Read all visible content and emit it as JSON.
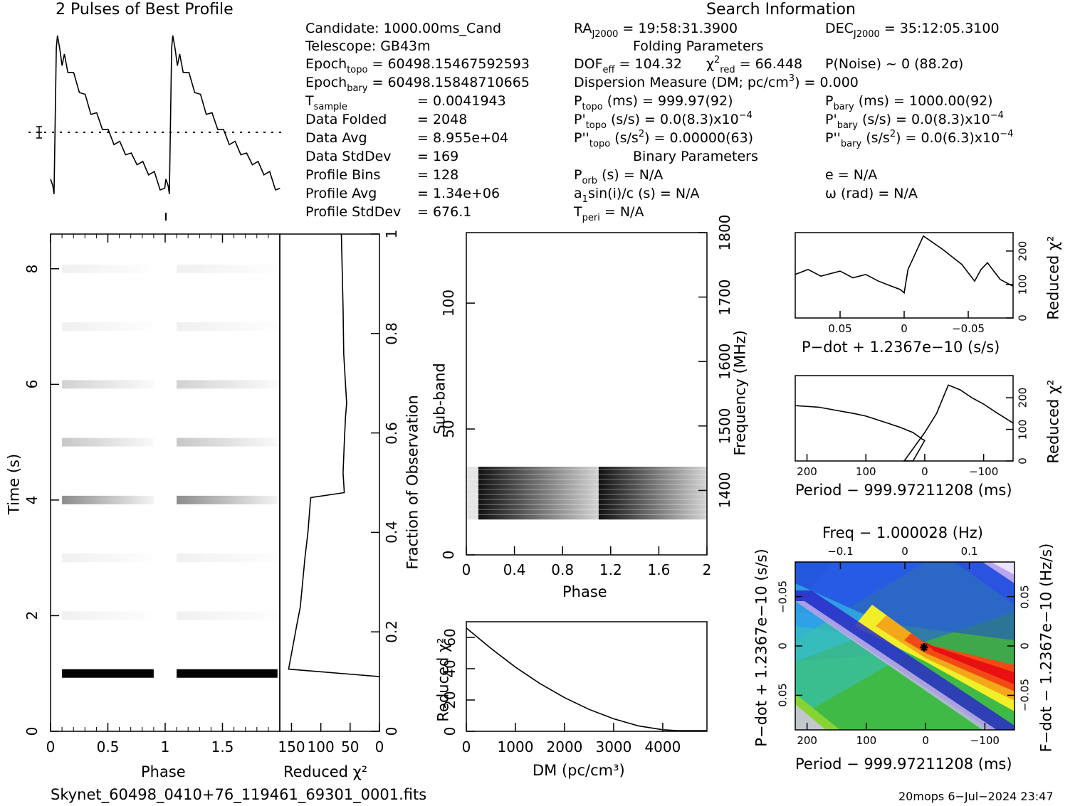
{
  "profile_title": "2 Pulses of Best Profile",
  "search_title": "Search Information",
  "folding_title": "Folding Parameters",
  "binary_title": "Binary Parameters",
  "candidate": {
    "candidate": "Candidate:  1000.00ms_Cand",
    "telescope": "Telescope:  GB43m",
    "epoch_topo_label": "Epoch",
    "epoch_topo_sub": "topo",
    "epoch_topo_value": " = 60498.15467592593",
    "epoch_bary_label": "Epoch",
    "epoch_bary_sub": "bary",
    "epoch_bary_value": " = 60498.15848710665",
    "tsample_label": "T",
    "tsample_sub": "sample",
    "tsample_value": "=   0.0041943",
    "data_folded_label": "Data Folded",
    "data_folded_value": "=   2048",
    "data_avg_label": "Data Avg",
    "data_avg_value": "=   8.955e+04",
    "data_stddev_label": "Data StdDev",
    "data_stddev_value": "=   169",
    "profile_bins_label": "Profile Bins",
    "profile_bins_value": "=   128",
    "profile_avg_label": "Profile Avg",
    "profile_avg_value": "=   1.34e+06",
    "profile_stddev_label": "Profile StdDev",
    "profile_stddev_value": "=   676.1"
  },
  "search": {
    "ra_label": "RA",
    "ra_sub": "J2000",
    "ra_value": " = 19:58:31.3900",
    "dec_label": "DEC",
    "dec_sub": "J2000",
    "dec_value": " = 35:12:05.3100",
    "dof_label": "DOF",
    "dof_sub": "eff",
    "dof_value": " = 104.32",
    "chi_label": "χ",
    "chi_sup": "2",
    "chi_sub": "red",
    "chi_value": " = 66.448",
    "pnoise": "P(Noise) ~ 0    (88.2σ)",
    "dm_text_a": "Dispersion Measure (DM; pc/cm",
    "dm_sup": "3",
    "dm_text_b": ") = 0.000",
    "ptopo_label": "P",
    "ptopo_sub": "topo",
    "ptopo_value": " (ms) =  999.97(92)",
    "pbary_label": "P",
    "pbary_sub": "bary",
    "pbary_value": " (ms) =  1000.00(92)",
    "pdtopo_label": "P'",
    "pdtopo_sub": "topo",
    "pdtopo_value": " (s/s) = 0.0(8.3)x10",
    "pdtopo_exp": "−4",
    "pdbary_label": "P'",
    "pdbary_sub": "bary",
    "pdbary_value": " (s/s) = 0.0(8.3)x10",
    "pdbary_exp": "−4",
    "pddtopo_label": "P''",
    "pddtopo_sub": "topo",
    "pddtopo_value_a": " (s/s",
    "pddtopo_sup": "2",
    "pddtopo_value_b": ") =  0.00000(63)",
    "pddbary_label": "P''",
    "pddbary_sub": "bary",
    "pddbary_value_a": " (s/s",
    "pddbary_sup": "2",
    "pddbary_value_b": ") = 0.0(6.3)x10",
    "pddbary_exp": "−4",
    "porb_label": "P",
    "porb_sub": "orb",
    "porb_value": " (s) = N/A",
    "e_text": "e = N/A",
    "asini_a": "a",
    "asini_sub": "1",
    "asini_b": "sin(i)/c (s) = N/A",
    "omega_text": "ω (rad) = N/A",
    "tperi_label": "T",
    "tperi_sub": "peri",
    "tperi_value": " = N/A"
  },
  "footer": {
    "filename": "Skynet_60498_0410+76_119461_69301_0001.fits",
    "stamp": "20mops  6−Jul−2024 23:47"
  },
  "colors": {
    "ink": "#000000",
    "background": "#ffffff"
  },
  "chart_data": [
    {
      "type": "line",
      "name": "pulse-profile",
      "title": "2 Pulses of Best Profile",
      "x": [
        0.0,
        0.02,
        0.03,
        0.05,
        0.06,
        0.08,
        0.1,
        0.12,
        0.15,
        0.2,
        0.25,
        0.3,
        0.35,
        0.4,
        0.45,
        0.5,
        0.55,
        0.6,
        0.65,
        0.7,
        0.75,
        0.8,
        0.85,
        0.9,
        0.95,
        0.99
      ],
      "values": [
        0.12,
        0.08,
        0.03,
        0.9,
        1.0,
        0.87,
        0.82,
        0.84,
        0.78,
        0.73,
        0.66,
        0.6,
        0.53,
        0.49,
        0.44,
        0.39,
        0.35,
        0.32,
        0.29,
        0.25,
        0.23,
        0.2,
        0.17,
        0.14,
        0.08,
        0.04
      ],
      "mean_level": 0.43,
      "pulses": 2
    },
    {
      "type": "heatmap",
      "name": "time-phase",
      "xlabel": "Phase",
      "ylabel": "Time (s)",
      "xlim": [
        0,
        2
      ],
      "ylim": [
        0,
        8.6
      ],
      "xticks": [
        "0",
        "0.5",
        "1",
        "1.5"
      ],
      "yticks": [
        "0",
        "2",
        "4",
        "6",
        "8"
      ],
      "rows": [
        {
          "time": 1.0,
          "shade": 0.95
        },
        {
          "time": 2.0,
          "shade": 0.06
        },
        {
          "time": 3.0,
          "shade": 0.06
        },
        {
          "time": 4.0,
          "shade": 0.45
        },
        {
          "time": 5.0,
          "shade": 0.22
        },
        {
          "time": 6.0,
          "shade": 0.18
        },
        {
          "time": 7.0,
          "shade": 0.06
        },
        {
          "time": 8.0,
          "shade": 0.06
        }
      ]
    },
    {
      "type": "line",
      "name": "chi-vs-fraction",
      "xlabel": "Reduced χ²",
      "ylabel": "Fraction of Observation",
      "xlim": [
        170,
        0
      ],
      "ylim": [
        0,
        1
      ],
      "xticks": [
        "150",
        "100",
        "50",
        "0"
      ],
      "yticks": [
        "0",
        "0.2",
        "0.4",
        "0.6",
        "0.8",
        "1"
      ],
      "x": [
        0,
        155,
        140,
        135,
        127,
        124,
        122,
        120,
        118,
        117,
        60,
        62,
        60,
        58,
        56,
        58,
        61,
        62,
        65
      ],
      "y": [
        0.11,
        0.125,
        0.22,
        0.25,
        0.35,
        0.38,
        0.4,
        0.43,
        0.46,
        0.47,
        0.48,
        0.52,
        0.58,
        0.63,
        0.66,
        0.7,
        0.76,
        0.85,
        1.0
      ]
    },
    {
      "type": "heatmap",
      "name": "subband-phase",
      "xlabel": "Phase",
      "ylabel": "Sub-band",
      "y2label": "Frequency (MHz)",
      "xlim": [
        0,
        2
      ],
      "ylim": [
        0,
        128
      ],
      "y2lim": [
        1300,
        1800
      ],
      "xticks": [
        "0",
        "0.4",
        "0.8",
        "1.2",
        "1.6",
        "2"
      ],
      "yticks": [
        "0",
        "50",
        "100"
      ],
      "y2ticks": [
        "1400",
        "1500",
        "1600",
        "1700",
        "1800"
      ],
      "band_subbands": [
        14,
        35
      ],
      "pulse_phase": [
        0.1,
        1.1
      ]
    },
    {
      "type": "line",
      "name": "dm-curve",
      "xlabel": "DM (pc/cm³)",
      "ylabel": "Reduced χ²",
      "xlim": [
        0,
        4900
      ],
      "ylim": [
        0,
        70
      ],
      "xticks": [
        "0",
        "1000",
        "2000",
        "3000",
        "4000"
      ],
      "yticks": [
        "0",
        "20",
        "40",
        "60"
      ],
      "x": [
        0,
        500,
        1000,
        1500,
        2000,
        2500,
        3000,
        3500,
        4000,
        4300,
        4900
      ],
      "values": [
        66,
        53,
        41,
        30.5,
        21.5,
        14,
        8,
        3.5,
        1,
        0.4,
        0.4
      ]
    },
    {
      "type": "line",
      "name": "pdot-curve",
      "xlabel": "P−dot + 1.2367e−10 (s/s)",
      "ylabel": "Reduced χ²",
      "xlim": [
        0.085,
        -0.085
      ],
      "ylim": [
        0,
        255
      ],
      "xticks": [
        "0.05",
        "0",
        "−0.05"
      ],
      "yticks": [
        "0",
        "100",
        "200"
      ],
      "x": [
        0.085,
        0.075,
        0.065,
        0.05,
        0.04,
        0.03,
        0.02,
        0.01,
        0.003,
        0.0,
        -0.003,
        -0.015,
        -0.03,
        -0.045,
        -0.055,
        -0.06,
        -0.065,
        -0.075,
        -0.085
      ],
      "values": [
        130,
        145,
        125,
        140,
        120,
        130,
        110,
        95,
        85,
        75,
        145,
        245,
        205,
        160,
        110,
        145,
        165,
        115,
        95
      ]
    },
    {
      "type": "line",
      "name": "period-curve",
      "xlabel": "Period − 999.97211208 (ms)",
      "ylabel": "Reduced χ²",
      "xlim": [
        220,
        -150
      ],
      "ylim": [
        0,
        270
      ],
      "xticks": [
        "200",
        "100",
        "0",
        "−100"
      ],
      "yticks": [
        "0",
        "100",
        "200"
      ],
      "x": [
        220,
        180,
        150,
        120,
        100,
        80,
        60,
        40,
        20,
        5,
        0,
        20,
        35,
        0,
        -20,
        -40,
        -60,
        -80,
        -100,
        -120,
        -150
      ],
      "values": [
        175,
        170,
        160,
        150,
        142,
        130,
        118,
        105,
        90,
        70,
        65,
        0,
        0,
        90,
        150,
        240,
        225,
        200,
        180,
        155,
        120
      ]
    },
    {
      "type": "heatmap",
      "name": "period-pdot",
      "xlabel": "Period − 999.97211208 (ms)",
      "ylabel": "P−dot + 1.2367e−10 (s/s)",
      "x2label": "Freq − 1.000028 (Hz)",
      "y2label": "F−dot − 1.2367e−10 (Hz/s)",
      "xlim": [
        220,
        -150
      ],
      "ylim": [
        0.085,
        -0.085
      ],
      "xticks": [
        "200",
        "100",
        "0",
        "−100"
      ],
      "yticks": [
        "0.05",
        "0",
        "−0.05"
      ],
      "x2ticks": [
        "−0.1",
        "0",
        "0.1"
      ],
      "y2ticks": [
        "−0.05",
        "0",
        "0.05"
      ],
      "best": {
        "period": 0,
        "pdot": 0
      }
    }
  ]
}
